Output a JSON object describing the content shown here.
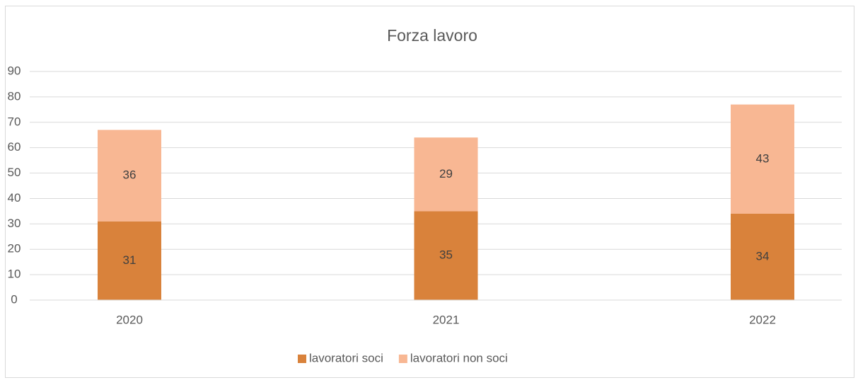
{
  "chart_data": {
    "type": "stacked_bar",
    "title": "Forza lavoro",
    "categories": [
      "2020",
      "2021",
      "2022"
    ],
    "series": [
      {
        "name": "lavoratori soci",
        "color": "#d9823b",
        "values": [
          31,
          35,
          34
        ]
      },
      {
        "name": "lavoratori non soci",
        "color": "#f8b793",
        "values": [
          36,
          29,
          43
        ]
      }
    ],
    "ylim": [
      0,
      90
    ],
    "yticks": [
      0,
      10,
      20,
      30,
      40,
      50,
      60,
      70,
      80,
      90
    ],
    "grid": true,
    "legend": "bottom"
  }
}
